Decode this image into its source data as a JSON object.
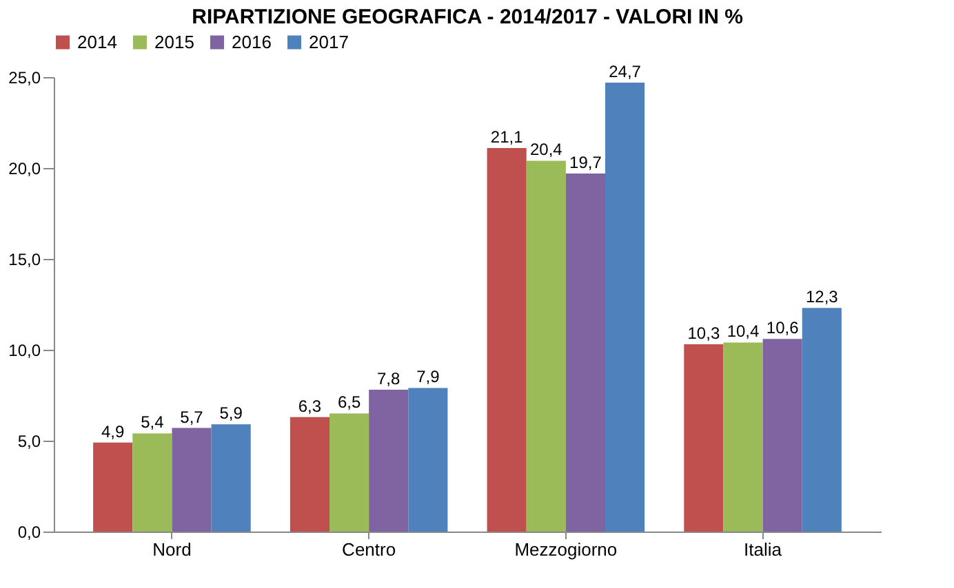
{
  "chart_data": {
    "type": "bar",
    "title": "RIPARTIZIONE GEOGRAFICA - 2014/2017 - VALORI IN %",
    "categories": [
      "Nord",
      "Centro",
      "Mezzogiorno",
      "Italia"
    ],
    "series": [
      {
        "name": "2014",
        "color": "#c0504d",
        "values": [
          4.9,
          6.3,
          21.1,
          10.3
        ],
        "value_labels": [
          "4,9",
          "6,3",
          "21,1",
          "10,3"
        ]
      },
      {
        "name": "2015",
        "color": "#9bbb59",
        "values": [
          5.4,
          6.5,
          20.4,
          10.4
        ],
        "value_labels": [
          "5,4",
          "6,5",
          "20,4",
          "10,4"
        ]
      },
      {
        "name": "2016",
        "color": "#8064a2",
        "values": [
          5.7,
          7.8,
          19.7,
          10.6
        ],
        "value_labels": [
          "5,7",
          "7,8",
          "19,7",
          "10,6"
        ]
      },
      {
        "name": "2017",
        "color": "#4f81bd",
        "values": [
          5.9,
          7.9,
          24.7,
          12.3
        ],
        "value_labels": [
          "5,9",
          "7,9",
          "24,7",
          "12,3"
        ]
      }
    ],
    "ylim": [
      0,
      25
    ],
    "yticks": [
      {
        "value": 0,
        "label": "0,0"
      },
      {
        "value": 5,
        "label": "5,0"
      },
      {
        "value": 10,
        "label": "10,0"
      },
      {
        "value": 15,
        "label": "15,0"
      },
      {
        "value": 20,
        "label": "20,0"
      },
      {
        "value": 25,
        "label": "25,0"
      }
    ],
    "grid": false,
    "legend": "top"
  }
}
